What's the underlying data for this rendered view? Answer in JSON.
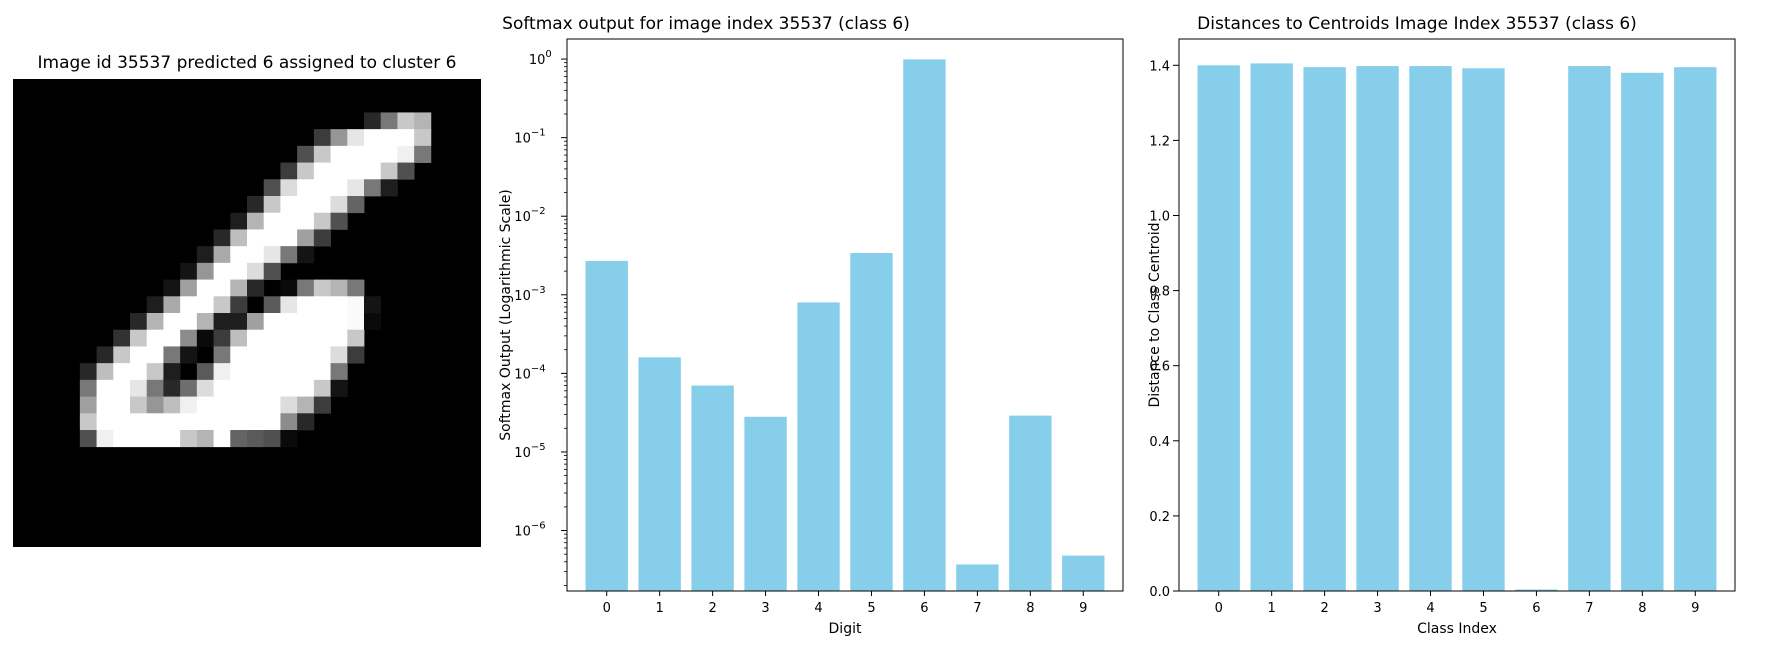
{
  "chart_data": [
    {
      "type": "image",
      "title": "Image id 35537 predicted 6 assigned to cluster 6",
      "pixels": [
        [
          0,
          0,
          0,
          0,
          0,
          0,
          0,
          0,
          0,
          0,
          0,
          0,
          0,
          0,
          0,
          0,
          0,
          0,
          0,
          0,
          0,
          0,
          0,
          0,
          0,
          0,
          0,
          0
        ],
        [
          0,
          0,
          0,
          0,
          0,
          0,
          0,
          0,
          0,
          0,
          0,
          0,
          0,
          0,
          0,
          0,
          0,
          0,
          0,
          0,
          0,
          0,
          0,
          0,
          0,
          0,
          0,
          0
        ],
        [
          0,
          0,
          0,
          0,
          0,
          0,
          0,
          0,
          0,
          0,
          0,
          0,
          0,
          0,
          0,
          0,
          0,
          0,
          0,
          0,
          0,
          40,
          120,
          200,
          180,
          0,
          0,
          0
        ],
        [
          0,
          0,
          0,
          0,
          0,
          0,
          0,
          0,
          0,
          0,
          0,
          0,
          0,
          0,
          0,
          0,
          0,
          0,
          60,
          150,
          230,
          255,
          255,
          255,
          200,
          0,
          0,
          0
        ],
        [
          0,
          0,
          0,
          0,
          0,
          0,
          0,
          0,
          0,
          0,
          0,
          0,
          0,
          0,
          0,
          0,
          0,
          80,
          200,
          255,
          255,
          255,
          255,
          240,
          120,
          0,
          0,
          0
        ],
        [
          0,
          0,
          0,
          0,
          0,
          0,
          0,
          0,
          0,
          0,
          0,
          0,
          0,
          0,
          0,
          0,
          60,
          200,
          255,
          255,
          255,
          255,
          200,
          80,
          0,
          0,
          0,
          0
        ],
        [
          0,
          0,
          0,
          0,
          0,
          0,
          0,
          0,
          0,
          0,
          0,
          0,
          0,
          0,
          0,
          80,
          220,
          255,
          255,
          255,
          230,
          120,
          30,
          0,
          0,
          0,
          0,
          0
        ],
        [
          0,
          0,
          0,
          0,
          0,
          0,
          0,
          0,
          0,
          0,
          0,
          0,
          0,
          0,
          40,
          200,
          255,
          255,
          255,
          220,
          100,
          0,
          0,
          0,
          0,
          0,
          0,
          0
        ],
        [
          0,
          0,
          0,
          0,
          0,
          0,
          0,
          0,
          0,
          0,
          0,
          0,
          0,
          30,
          180,
          255,
          255,
          255,
          200,
          80,
          0,
          0,
          0,
          0,
          0,
          0,
          0,
          0
        ],
        [
          0,
          0,
          0,
          0,
          0,
          0,
          0,
          0,
          0,
          0,
          0,
          0,
          40,
          190,
          255,
          255,
          255,
          160,
          60,
          0,
          0,
          0,
          0,
          0,
          0,
          0,
          0,
          0
        ],
        [
          0,
          0,
          0,
          0,
          0,
          0,
          0,
          0,
          0,
          0,
          0,
          30,
          170,
          255,
          255,
          230,
          120,
          20,
          0,
          0,
          0,
          0,
          0,
          0,
          0,
          0,
          0,
          0
        ],
        [
          0,
          0,
          0,
          0,
          0,
          0,
          0,
          0,
          0,
          0,
          20,
          150,
          255,
          255,
          220,
          80,
          0,
          0,
          0,
          0,
          0,
          0,
          0,
          0,
          0,
          0,
          0,
          0
        ],
        [
          0,
          0,
          0,
          0,
          0,
          0,
          0,
          0,
          0,
          20,
          160,
          255,
          255,
          180,
          40,
          0,
          10,
          120,
          200,
          180,
          120,
          0,
          0,
          0,
          0,
          0,
          0,
          0
        ],
        [
          0,
          0,
          0,
          0,
          0,
          0,
          0,
          0,
          30,
          170,
          255,
          255,
          200,
          60,
          0,
          90,
          230,
          255,
          255,
          255,
          250,
          20,
          0,
          0,
          0,
          0,
          0,
          0
        ],
        [
          0,
          0,
          0,
          0,
          0,
          0,
          0,
          40,
          180,
          255,
          255,
          180,
          30,
          30,
          160,
          255,
          255,
          255,
          255,
          255,
          250,
          10,
          0,
          0,
          0,
          0,
          0,
          0
        ],
        [
          0,
          0,
          0,
          0,
          0,
          0,
          50,
          200,
          255,
          255,
          140,
          10,
          60,
          190,
          255,
          255,
          255,
          255,
          255,
          255,
          200,
          0,
          0,
          0,
          0,
          0,
          0,
          0
        ],
        [
          0,
          0,
          0,
          0,
          0,
          40,
          200,
          255,
          255,
          120,
          20,
          0,
          120,
          255,
          255,
          255,
          255,
          255,
          255,
          220,
          60,
          0,
          0,
          0,
          0,
          0,
          0,
          0
        ],
        [
          0,
          0,
          0,
          0,
          40,
          190,
          255,
          255,
          200,
          30,
          0,
          90,
          240,
          255,
          255,
          255,
          255,
          255,
          255,
          120,
          0,
          0,
          0,
          0,
          0,
          0,
          0,
          0
        ],
        [
          0,
          0,
          0,
          0,
          120,
          255,
          255,
          230,
          120,
          40,
          110,
          220,
          255,
          255,
          255,
          255,
          255,
          255,
          200,
          20,
          0,
          0,
          0,
          0,
          0,
          0,
          0,
          0
        ],
        [
          0,
          0,
          0,
          0,
          160,
          255,
          255,
          200,
          150,
          190,
          240,
          255,
          255,
          255,
          255,
          255,
          220,
          180,
          60,
          0,
          0,
          0,
          0,
          0,
          0,
          0,
          0,
          0
        ],
        [
          0,
          0,
          0,
          0,
          200,
          255,
          255,
          255,
          255,
          255,
          255,
          255,
          255,
          255,
          255,
          255,
          140,
          40,
          0,
          0,
          0,
          0,
          0,
          0,
          0,
          0,
          0,
          0
        ],
        [
          0,
          0,
          0,
          0,
          80,
          240,
          255,
          255,
          255,
          255,
          200,
          180,
          255,
          100,
          90,
          80,
          10,
          0,
          0,
          0,
          0,
          0,
          0,
          0,
          0,
          0,
          0,
          0
        ],
        [
          0,
          0,
          0,
          0,
          0,
          0,
          0,
          0,
          0,
          0,
          0,
          0,
          0,
          0,
          0,
          0,
          0,
          0,
          0,
          0,
          0,
          0,
          0,
          0,
          0,
          0,
          0,
          0
        ],
        [
          0,
          0,
          0,
          0,
          0,
          0,
          0,
          0,
          0,
          0,
          0,
          0,
          0,
          0,
          0,
          0,
          0,
          0,
          0,
          0,
          0,
          0,
          0,
          0,
          0,
          0,
          0,
          0
        ],
        [
          0,
          0,
          0,
          0,
          0,
          0,
          0,
          0,
          0,
          0,
          0,
          0,
          0,
          0,
          0,
          0,
          0,
          0,
          0,
          0,
          0,
          0,
          0,
          0,
          0,
          0,
          0,
          0
        ],
        [
          0,
          0,
          0,
          0,
          0,
          0,
          0,
          0,
          0,
          0,
          0,
          0,
          0,
          0,
          0,
          0,
          0,
          0,
          0,
          0,
          0,
          0,
          0,
          0,
          0,
          0,
          0,
          0
        ],
        [
          0,
          0,
          0,
          0,
          0,
          0,
          0,
          0,
          0,
          0,
          0,
          0,
          0,
          0,
          0,
          0,
          0,
          0,
          0,
          0,
          0,
          0,
          0,
          0,
          0,
          0,
          0,
          0
        ],
        [
          0,
          0,
          0,
          0,
          0,
          0,
          0,
          0,
          0,
          0,
          0,
          0,
          0,
          0,
          0,
          0,
          0,
          0,
          0,
          0,
          0,
          0,
          0,
          0,
          0,
          0,
          0,
          0
        ]
      ]
    },
    {
      "type": "bar",
      "title": "Softmax output for image index 35537 (class 6)",
      "xlabel": "Digit",
      "ylabel": "Softmax Output (Logarithmic Scale)",
      "yscale": "log",
      "categories": [
        "0",
        "1",
        "2",
        "3",
        "4",
        "5",
        "6",
        "7",
        "8",
        "9"
      ],
      "values": [
        0.0027,
        0.00016,
        7e-05,
        2.8e-05,
        0.0008,
        0.0034,
        0.99,
        3.7e-07,
        2.9e-05,
        4.8e-07
      ],
      "ylim": [
        1.7e-07,
        1.8
      ],
      "yticks": [
        {
          "value": 1e-06,
          "base": "10",
          "exp": "−6"
        },
        {
          "value": 1e-05,
          "base": "10",
          "exp": "−5"
        },
        {
          "value": 0.0001,
          "base": "10",
          "exp": "−4"
        },
        {
          "value": 0.001,
          "base": "10",
          "exp": "−3"
        },
        {
          "value": 0.01,
          "base": "10",
          "exp": "−2"
        },
        {
          "value": 0.1,
          "base": "10",
          "exp": "−1"
        },
        {
          "value": 1,
          "base": "10",
          "exp": "0"
        }
      ],
      "bar_color": "#87ceeb"
    },
    {
      "type": "bar",
      "title": "Distances to Centroids Image Index 35537 (class 6)",
      "xlabel": "Class Index",
      "ylabel": "Distance to Class Centroid",
      "categories": [
        "0",
        "1",
        "2",
        "3",
        "4",
        "5",
        "6",
        "7",
        "8",
        "9"
      ],
      "values": [
        1.4,
        1.405,
        1.395,
        1.398,
        1.398,
        1.392,
        0.004,
        1.398,
        1.38,
        1.395
      ],
      "ylim": [
        0,
        1.47
      ],
      "yticks": [
        "0.0",
        "0.2",
        "0.4",
        "0.6",
        "0.8",
        "1.0",
        "1.2",
        "1.4"
      ],
      "bar_color": "#87ceeb"
    }
  ]
}
